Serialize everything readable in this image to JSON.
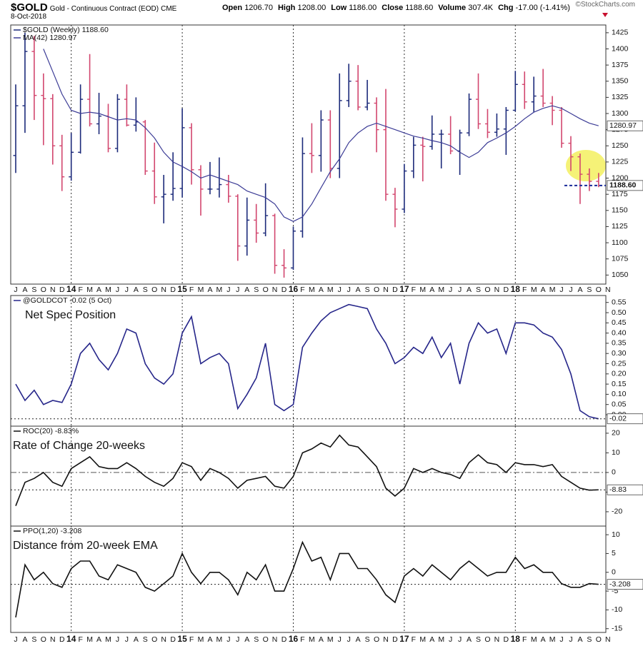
{
  "header": {
    "symbol": "$GOLD",
    "name": "Gold - Continuous Contract (EOD)",
    "exchange": "CME",
    "date": "8-Oct-2018",
    "copyright": "©StockCharts.com",
    "quote": [
      {
        "label": "Open",
        "value": "1206.70"
      },
      {
        "label": "High",
        "value": "1208.00"
      },
      {
        "label": "Low",
        "value": "1186.00"
      },
      {
        "label": "Close",
        "value": "1188.60"
      },
      {
        "label": "Volume",
        "value": "307.4K"
      },
      {
        "label": "Chg",
        "value": "-17.00 (-1.41%)"
      }
    ]
  },
  "chart_data": [
    {
      "type": "ohlc",
      "categories": [
        "J",
        "A",
        "S",
        "O",
        "N",
        "D",
        "14",
        "F",
        "M",
        "A",
        "M",
        "J",
        "J",
        "A",
        "S",
        "O",
        "N",
        "D",
        "15",
        "F",
        "M",
        "A",
        "M",
        "J",
        "J",
        "A",
        "S",
        "O",
        "N",
        "D",
        "16",
        "F",
        "M",
        "A",
        "M",
        "J",
        "J",
        "A",
        "S",
        "O",
        "N",
        "D",
        "17",
        "F",
        "M",
        "A",
        "M",
        "J",
        "J",
        "A",
        "S",
        "O",
        "N",
        "D",
        "18",
        "F",
        "M",
        "A",
        "M",
        "J",
        "J",
        "A",
        "S",
        "O",
        "N"
      ],
      "ylim": [
        1036,
        1437
      ],
      "yticks": [
        1050,
        1075,
        1100,
        1125,
        1150,
        1175,
        1200,
        1225,
        1250,
        1275,
        1300,
        1325,
        1350,
        1375,
        1400,
        1425
      ],
      "grid": true,
      "series": [
        {
          "name": "$GOLD (Weekly) 1188.60",
          "up_color": "#1c2a7a",
          "down_color": "#d2466e",
          "color": "#1c2a7a",
          "open": [
            1235,
            1312,
            1396,
            1328,
            1323,
            1250,
            1202,
            1240,
            1322,
            1284,
            1296,
            1246,
            1322,
            1282,
            1287,
            1211,
            1171,
            1175,
            1184,
            1278,
            1213,
            1183,
            1183,
            1190,
            1172,
            1095,
            1135,
            1115,
            1142,
            1065,
            1061,
            1118,
            1238,
            1235,
            1290,
            1215,
            1320,
            1350,
            1310,
            1316,
            1275,
            1175,
            1152,
            1211,
            1251,
            1249,
            1268,
            1268,
            1242,
            1270,
            1322,
            1284,
            1271,
            1276,
            1305,
            1345,
            1318,
            1327,
            1316,
            1305,
            1254,
            1233,
            1206,
            1195,
            null
          ],
          "high": [
            1345,
            1425,
            1420,
            1362,
            1330,
            1267,
            1270,
            1345,
            1392,
            1332,
            1315,
            1330,
            1345,
            1325,
            1290,
            1255,
            1205,
            1240,
            1308,
            1285,
            1220,
            1225,
            1232,
            1205,
            1175,
            1170,
            1160,
            1192,
            1145,
            1090,
            1125,
            1263,
            1285,
            1305,
            1305,
            1362,
            1377,
            1375,
            1352,
            1325,
            1338,
            1185,
            1222,
            1264,
            1264,
            1297,
            1275,
            1296,
            1275,
            1331,
            1362,
            1307,
            1300,
            1310,
            1366,
            1365,
            1357,
            1369,
            1327,
            1310,
            1265,
            1238,
            1215,
            1208,
            null
          ],
          "low": [
            1208,
            1270,
            1290,
            1251,
            1221,
            1180,
            1196,
            1238,
            1280,
            1268,
            1240,
            1240,
            1280,
            1272,
            1205,
            1160,
            1130,
            1165,
            1170,
            1190,
            1142,
            1175,
            1170,
            1162,
            1072,
            1080,
            1100,
            1110,
            1052,
            1046,
            1058,
            1108,
            1208,
            1210,
            1200,
            1200,
            1310,
            1305,
            1305,
            1240,
            1165,
            1124,
            1146,
            1200,
            1195,
            1244,
            1215,
            1237,
            1205,
            1265,
            1276,
            1262,
            1264,
            1236,
            1303,
            1307,
            1302,
            1310,
            1282,
            1247,
            1211,
            1160,
            1180,
            1186,
            null
          ],
          "close": [
            1312,
            1396,
            1328,
            1323,
            1250,
            1202,
            1240,
            1322,
            1284,
            1296,
            1246,
            1322,
            1282,
            1287,
            1211,
            1171,
            1175,
            1184,
            1278,
            1213,
            1183,
            1183,
            1190,
            1172,
            1095,
            1135,
            1115,
            1142,
            1065,
            1061,
            1118,
            1238,
            1235,
            1290,
            1215,
            1320,
            1350,
            1310,
            1316,
            1275,
            1175,
            1152,
            1211,
            1251,
            1249,
            1268,
            1268,
            1242,
            1270,
            1322,
            1284,
            1271,
            1276,
            1305,
            1345,
            1318,
            1327,
            1316,
            1305,
            1254,
            1233,
            1206,
            1195,
            1188.6,
            null
          ],
          "last": {
            "value": 1188.6,
            "label": "1188.60"
          }
        },
        {
          "name": "MA(42) 1280.97",
          "color": "#3c3c96",
          "values": [
            null,
            null,
            null,
            1400,
            1365,
            1330,
            1305,
            1300,
            1302,
            1300,
            1295,
            1290,
            1292,
            1290,
            1278,
            1262,
            1240,
            1225,
            1218,
            1210,
            1200,
            1205,
            1200,
            1195,
            1190,
            1180,
            1175,
            1170,
            1160,
            1140,
            1133,
            1140,
            1160,
            1185,
            1210,
            1230,
            1255,
            1270,
            1280,
            1285,
            1280,
            1275,
            1270,
            1265,
            1262,
            1258,
            1255,
            1250,
            1240,
            1232,
            1240,
            1255,
            1262,
            1270,
            1280,
            1292,
            1302,
            1308,
            1312,
            1308,
            1300,
            1292,
            1285,
            1280.97,
            null
          ],
          "last": {
            "value": 1280.97,
            "label": "1280.97"
          }
        }
      ]
    },
    {
      "type": "line",
      "annotation": "Net Spec Position",
      "ylim": [
        -0.056,
        0.584
      ],
      "yticks": [
        {
          "value": 0,
          "label": "0.00"
        },
        {
          "value": 0.05,
          "label": "0.05"
        },
        {
          "value": 0.1,
          "label": "0.10"
        },
        {
          "value": 0.15,
          "label": "0.15"
        },
        {
          "value": 0.2,
          "label": "0.20"
        },
        {
          "value": 0.25,
          "label": "0.25"
        },
        {
          "value": 0.3,
          "label": "0.30"
        },
        {
          "value": 0.35,
          "label": "0.35"
        },
        {
          "value": 0.4,
          "label": "0.40"
        },
        {
          "value": 0.45,
          "label": "0.45"
        },
        {
          "value": 0.5,
          "label": "0.50"
        },
        {
          "value": 0.55,
          "label": "0.55"
        }
      ],
      "series": [
        {
          "name": "@GOLDCOT -0.02 (5 Oct)",
          "color": "#26268a",
          "values": [
            0.15,
            0.07,
            0.12,
            0.05,
            0.07,
            0.06,
            0.15,
            0.3,
            0.35,
            0.27,
            0.22,
            0.3,
            0.42,
            0.4,
            0.25,
            0.18,
            0.15,
            0.2,
            0.4,
            0.48,
            0.25,
            0.28,
            0.3,
            0.25,
            0.03,
            0.1,
            0.18,
            0.35,
            0.05,
            0.02,
            0.05,
            0.33,
            0.4,
            0.46,
            0.5,
            0.52,
            0.54,
            0.53,
            0.52,
            0.42,
            0.35,
            0.25,
            0.28,
            0.33,
            0.3,
            0.38,
            0.28,
            0.35,
            0.15,
            0.35,
            0.45,
            0.4,
            0.42,
            0.3,
            0.45,
            0.45,
            0.44,
            0.4,
            0.38,
            0.32,
            0.2,
            0.02,
            -0.01,
            -0.02,
            null
          ],
          "last": {
            "value": -0.02,
            "label": "-0.02"
          }
        }
      ]
    },
    {
      "type": "line",
      "annotation": "Rate of Change 20-weeks",
      "zero_line": true,
      "ylim": [
        -27.3,
        23.6
      ],
      "yticks": [
        -20,
        -10,
        0,
        10,
        20
      ],
      "series": [
        {
          "name": "ROC(20) -8.83%",
          "color": "#111111",
          "values": [
            -17,
            -5,
            -3,
            0,
            -5,
            -7,
            2,
            5,
            8,
            3,
            2,
            2,
            5,
            2,
            -2,
            -5,
            -7,
            -3,
            5,
            3,
            -4,
            2,
            0,
            -3,
            -8,
            -4,
            -3,
            -2,
            -7,
            -8,
            -2,
            10,
            12,
            15,
            13,
            19,
            14,
            13,
            8,
            3,
            -8,
            -12,
            -8,
            2,
            0,
            2,
            0,
            -1,
            -3,
            5,
            9,
            5,
            4,
            0,
            5,
            4,
            4,
            3,
            4,
            -2,
            -5,
            -8,
            -9,
            -8.83,
            null
          ],
          "last": {
            "value": -8.83,
            "label": "-8.83"
          }
        }
      ]
    },
    {
      "type": "line",
      "annotation": "Distance from 20-week EMA",
      "ylim": [
        -16,
        12.3
      ],
      "yticks": [
        -15,
        -10,
        -5,
        0,
        5,
        10
      ],
      "series": [
        {
          "name": "PPO(1,20) -3.208",
          "color": "#111111",
          "values": [
            -12,
            2,
            -2,
            0,
            -3,
            -4,
            1,
            3,
            3,
            -1,
            -2,
            2,
            1,
            0,
            -4,
            -5,
            -3,
            -1,
            5,
            0,
            -3,
            0,
            0,
            -2,
            -6,
            0,
            -2,
            2,
            -5,
            -5,
            1,
            8,
            3,
            4,
            -2,
            5,
            5,
            1,
            1,
            -2,
            -6,
            -8,
            -1,
            1,
            -1,
            2,
            0,
            -2,
            1,
            3,
            1,
            -1,
            0,
            0,
            4,
            1,
            2,
            0,
            0,
            -3,
            -4,
            -4,
            -3,
            -3.208,
            null
          ],
          "last": {
            "value": -3.208,
            "label": "-3.208"
          }
        }
      ]
    }
  ]
}
